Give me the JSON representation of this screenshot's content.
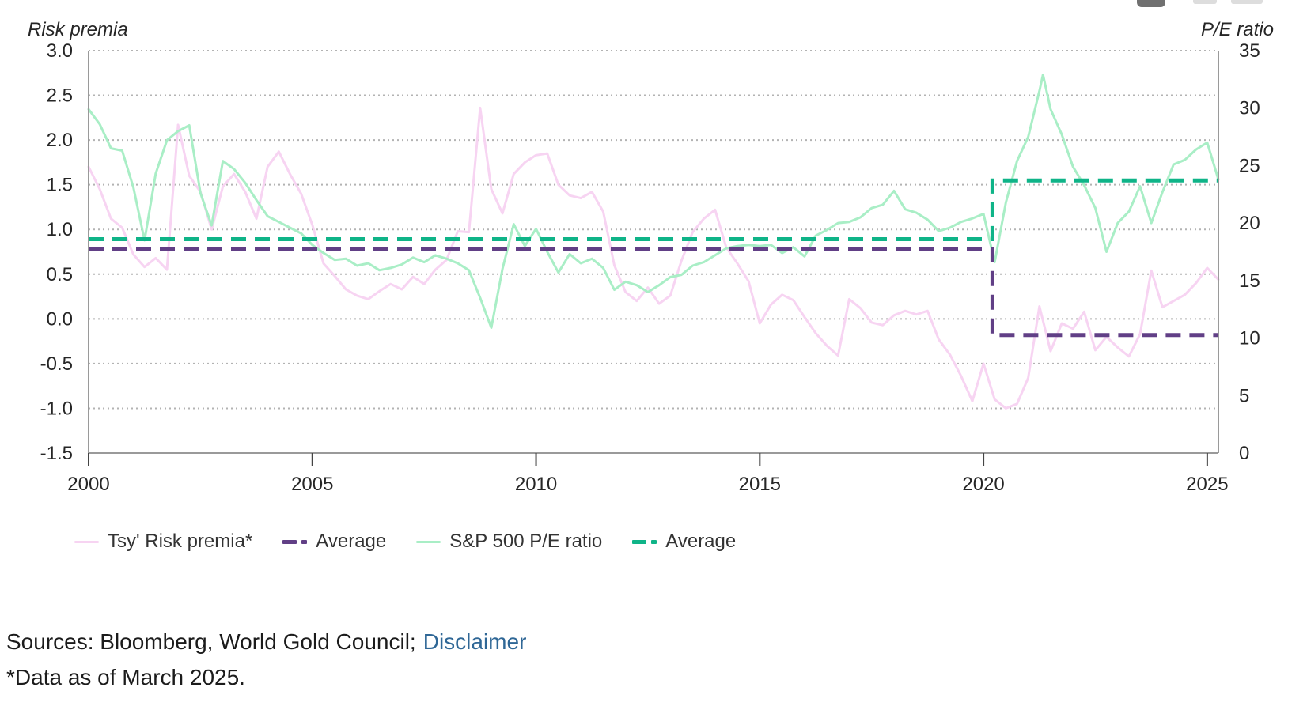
{
  "chart_data": {
    "type": "line",
    "x_axis": {
      "ticks": [
        2000,
        2005,
        2010,
        2015,
        2020,
        2025
      ],
      "range": [
        2000,
        2025.25
      ],
      "grid": false
    },
    "left_axis": {
      "title": "Risk premia",
      "tick_labels": [
        "3.0",
        "2.5",
        "2.0",
        "1.5",
        "1.0",
        "0.5",
        "0.0",
        "-0.5",
        "-1.0",
        "-1.5"
      ],
      "range": [
        -1.5,
        3.0
      ],
      "grid": true
    },
    "right_axis": {
      "title": "P/E ratio",
      "tick_labels": [
        "35",
        "30",
        "25",
        "20",
        "15",
        "10",
        "5",
        "0"
      ],
      "range": [
        0,
        35
      ],
      "grid": false
    },
    "legend_position": "bottom",
    "series": [
      {
        "key": "risk_premia",
        "name": "Tsy' Risk premia*",
        "axis": "left",
        "style": "solid",
        "color": "#f7d4f2",
        "points": [
          [
            2000,
            1.7
          ],
          [
            2000.25,
            1.45
          ],
          [
            2000.5,
            1.12
          ],
          [
            2000.75,
            1.02
          ],
          [
            2001,
            0.72
          ],
          [
            2001.25,
            0.58
          ],
          [
            2001.5,
            0.68
          ],
          [
            2001.75,
            0.55
          ],
          [
            2002,
            2.17
          ],
          [
            2002.25,
            1.6
          ],
          [
            2002.5,
            1.42
          ],
          [
            2002.75,
            1.0
          ],
          [
            2003,
            1.48
          ],
          [
            2003.25,
            1.62
          ],
          [
            2003.5,
            1.42
          ],
          [
            2003.75,
            1.12
          ],
          [
            2004,
            1.7
          ],
          [
            2004.25,
            1.87
          ],
          [
            2004.5,
            1.62
          ],
          [
            2004.75,
            1.4
          ],
          [
            2005,
            1.05
          ],
          [
            2005.25,
            0.62
          ],
          [
            2005.5,
            0.48
          ],
          [
            2005.75,
            0.33
          ],
          [
            2006,
            0.26
          ],
          [
            2006.25,
            0.22
          ],
          [
            2006.5,
            0.31
          ],
          [
            2006.75,
            0.39
          ],
          [
            2007,
            0.33
          ],
          [
            2007.25,
            0.47
          ],
          [
            2007.5,
            0.39
          ],
          [
            2007.75,
            0.55
          ],
          [
            2008,
            0.66
          ],
          [
            2008.25,
            0.98
          ],
          [
            2008.5,
            0.97
          ],
          [
            2008.75,
            2.36
          ],
          [
            2009,
            1.45
          ],
          [
            2009.25,
            1.18
          ],
          [
            2009.5,
            1.62
          ],
          [
            2009.75,
            1.75
          ],
          [
            2010,
            1.83
          ],
          [
            2010.25,
            1.85
          ],
          [
            2010.5,
            1.5
          ],
          [
            2010.75,
            1.38
          ],
          [
            2011,
            1.35
          ],
          [
            2011.25,
            1.42
          ],
          [
            2011.5,
            1.2
          ],
          [
            2011.75,
            0.6
          ],
          [
            2012,
            0.3
          ],
          [
            2012.25,
            0.2
          ],
          [
            2012.5,
            0.35
          ],
          [
            2012.75,
            0.17
          ],
          [
            2013,
            0.26
          ],
          [
            2013.25,
            0.65
          ],
          [
            2013.5,
            0.97
          ],
          [
            2013.75,
            1.12
          ],
          [
            2014,
            1.22
          ],
          [
            2014.25,
            0.8
          ],
          [
            2014.5,
            0.62
          ],
          [
            2014.75,
            0.42
          ],
          [
            2015,
            -0.05
          ],
          [
            2015.25,
            0.16
          ],
          [
            2015.5,
            0.27
          ],
          [
            2015.75,
            0.21
          ],
          [
            2016,
            0.02
          ],
          [
            2016.25,
            -0.16
          ],
          [
            2016.5,
            -0.3
          ],
          [
            2016.75,
            -0.41
          ],
          [
            2017,
            0.22
          ],
          [
            2017.25,
            0.12
          ],
          [
            2017.5,
            -0.04
          ],
          [
            2017.75,
            -0.07
          ],
          [
            2018,
            0.04
          ],
          [
            2018.25,
            0.09
          ],
          [
            2018.5,
            0.05
          ],
          [
            2018.75,
            0.09
          ],
          [
            2019,
            -0.23
          ],
          [
            2019.25,
            -0.4
          ],
          [
            2019.5,
            -0.64
          ],
          [
            2019.75,
            -0.92
          ],
          [
            2020,
            -0.5
          ],
          [
            2020.25,
            -0.9
          ],
          [
            2020.5,
            -1.0
          ],
          [
            2020.75,
            -0.95
          ],
          [
            2021,
            -0.66
          ],
          [
            2021.25,
            0.14
          ],
          [
            2021.5,
            -0.36
          ],
          [
            2021.75,
            -0.05
          ],
          [
            2022,
            -0.11
          ],
          [
            2022.25,
            0.08
          ],
          [
            2022.5,
            -0.35
          ],
          [
            2022.75,
            -0.2
          ],
          [
            2023,
            -0.32
          ],
          [
            2023.25,
            -0.42
          ],
          [
            2023.5,
            -0.17
          ],
          [
            2023.75,
            0.54
          ],
          [
            2024,
            0.13
          ],
          [
            2024.25,
            0.2
          ],
          [
            2024.5,
            0.27
          ],
          [
            2024.75,
            0.4
          ],
          [
            2025,
            0.57
          ],
          [
            2025.25,
            0.44
          ]
        ]
      },
      {
        "key": "risk_premia_average",
        "name": "Average",
        "axis": "left",
        "style": "dashed",
        "color": "#613f86",
        "step": {
          "before": 0.78,
          "after": -0.18,
          "break_year": 2020.2
        }
      },
      {
        "key": "pe_ratio",
        "name": "S&P 500 P/E ratio",
        "axis": "right",
        "style": "solid",
        "color": "#a9eec6",
        "points": [
          [
            2000,
            29.9
          ],
          [
            2000.25,
            28.6
          ],
          [
            2000.5,
            26.5
          ],
          [
            2000.75,
            26.3
          ],
          [
            2001,
            23.1
          ],
          [
            2001.25,
            18.5
          ],
          [
            2001.5,
            24.3
          ],
          [
            2001.75,
            27.2
          ],
          [
            2002,
            28.0
          ],
          [
            2002.25,
            28.5
          ],
          [
            2002.5,
            22.6
          ],
          [
            2002.75,
            19.8
          ],
          [
            2003,
            25.4
          ],
          [
            2003.25,
            24.7
          ],
          [
            2003.5,
            23.5
          ],
          [
            2003.75,
            22.0
          ],
          [
            2004,
            20.6
          ],
          [
            2004.25,
            20.1
          ],
          [
            2004.5,
            19.6
          ],
          [
            2004.75,
            19.1
          ],
          [
            2005,
            18.1
          ],
          [
            2005.25,
            17.4
          ],
          [
            2005.5,
            16.8
          ],
          [
            2005.75,
            16.9
          ],
          [
            2006,
            16.3
          ],
          [
            2006.25,
            16.5
          ],
          [
            2006.5,
            15.9
          ],
          [
            2006.75,
            16.1
          ],
          [
            2007,
            16.4
          ],
          [
            2007.25,
            17.0
          ],
          [
            2007.5,
            16.6
          ],
          [
            2007.75,
            17.2
          ],
          [
            2008,
            16.9
          ],
          [
            2008.25,
            16.5
          ],
          [
            2008.5,
            15.9
          ],
          [
            2008.75,
            13.5
          ],
          [
            2009,
            10.9
          ],
          [
            2009.25,
            16.0
          ],
          [
            2009.5,
            19.9
          ],
          [
            2009.75,
            18.0
          ],
          [
            2010,
            19.5
          ],
          [
            2010.25,
            17.5
          ],
          [
            2010.5,
            15.7
          ],
          [
            2010.75,
            17.3
          ],
          [
            2011,
            16.5
          ],
          [
            2011.25,
            16.9
          ],
          [
            2011.5,
            16.1
          ],
          [
            2011.75,
            14.2
          ],
          [
            2012,
            14.9
          ],
          [
            2012.25,
            14.6
          ],
          [
            2012.5,
            14.0
          ],
          [
            2012.75,
            14.6
          ],
          [
            2013,
            15.3
          ],
          [
            2013.25,
            15.5
          ],
          [
            2013.5,
            16.3
          ],
          [
            2013.75,
            16.6
          ],
          [
            2014,
            17.2
          ],
          [
            2014.25,
            17.8
          ],
          [
            2014.5,
            18.0
          ],
          [
            2014.75,
            18.1
          ],
          [
            2015,
            18.0
          ],
          [
            2015.25,
            18.1
          ],
          [
            2015.5,
            17.4
          ],
          [
            2015.75,
            17.9
          ],
          [
            2016,
            17.1
          ],
          [
            2016.25,
            18.9
          ],
          [
            2016.5,
            19.4
          ],
          [
            2016.75,
            20.0
          ],
          [
            2017,
            20.1
          ],
          [
            2017.25,
            20.5
          ],
          [
            2017.5,
            21.3
          ],
          [
            2017.75,
            21.6
          ],
          [
            2018,
            22.8
          ],
          [
            2018.25,
            21.2
          ],
          [
            2018.5,
            20.9
          ],
          [
            2018.75,
            20.3
          ],
          [
            2019,
            19.3
          ],
          [
            2019.25,
            19.6
          ],
          [
            2019.5,
            20.1
          ],
          [
            2019.75,
            20.4
          ],
          [
            2020,
            20.8
          ],
          [
            2020.25,
            16.6
          ],
          [
            2020.5,
            21.8
          ],
          [
            2020.75,
            25.4
          ],
          [
            2021,
            27.5
          ],
          [
            2021.25,
            31.5
          ],
          [
            2021.33,
            32.9
          ],
          [
            2021.5,
            29.9
          ],
          [
            2021.75,
            27.7
          ],
          [
            2022,
            24.9
          ],
          [
            2022.25,
            23.3
          ],
          [
            2022.5,
            21.3
          ],
          [
            2022.75,
            17.5
          ],
          [
            2023,
            20.0
          ],
          [
            2023.25,
            21.0
          ],
          [
            2023.5,
            23.2
          ],
          [
            2023.75,
            20.0
          ],
          [
            2024,
            22.7
          ],
          [
            2024.25,
            25.1
          ],
          [
            2024.5,
            25.5
          ],
          [
            2024.75,
            26.4
          ],
          [
            2025,
            27.0
          ],
          [
            2025.25,
            23.8
          ]
        ]
      },
      {
        "key": "pe_ratio_average",
        "name": "Average",
        "axis": "right",
        "style": "dashed",
        "color": "#0fb488",
        "step": {
          "before": 18.6,
          "after": 23.7,
          "break_year": 2020.2
        }
      }
    ]
  },
  "style": {
    "grid_color": "#b3b3b3",
    "axis_color": "#9a9a9a",
    "tick_mark_color": "#444444",
    "label_color": "#262626"
  },
  "footer": {
    "sources_text": "Sources: Bloomberg, World Gold Council;",
    "disclaimer_label": "Disclaimer",
    "data_note": "*Data as of March 2025."
  }
}
